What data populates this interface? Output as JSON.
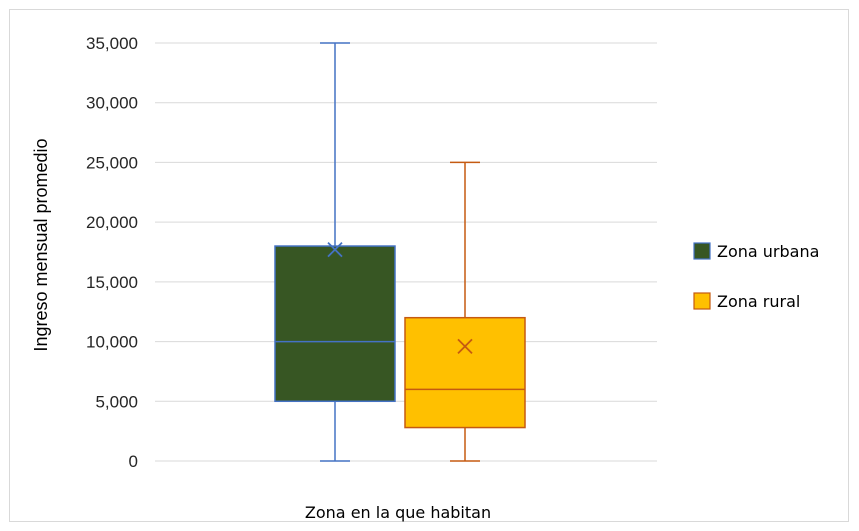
{
  "chart_data": {
    "type": "box",
    "title": "",
    "xlabel": "Zona en la que habitan",
    "ylabel": "Ingreso mensual promedio",
    "ylim": [
      0,
      35000
    ],
    "yticks": [
      0,
      5000,
      10000,
      15000,
      20000,
      25000,
      30000,
      35000
    ],
    "ytick_labels": [
      "0",
      "5,000",
      "10,000",
      "15,000",
      "20,000",
      "25,000",
      "30,000",
      "35,000"
    ],
    "grid": true,
    "legend_position": "right",
    "series": [
      {
        "name": "Zona urbana",
        "min": 0,
        "q1": 5000,
        "median": 10000,
        "q3": 18000,
        "max": 35000,
        "mean": 17700,
        "fill": "#375623",
        "stroke": "#4472C4"
      },
      {
        "name": "Zona rural",
        "min": 0,
        "q1": 2800,
        "median": 6000,
        "q3": 12000,
        "max": 25000,
        "mean": 9600,
        "fill": "#FFC000",
        "stroke": "#C55A11"
      }
    ]
  }
}
